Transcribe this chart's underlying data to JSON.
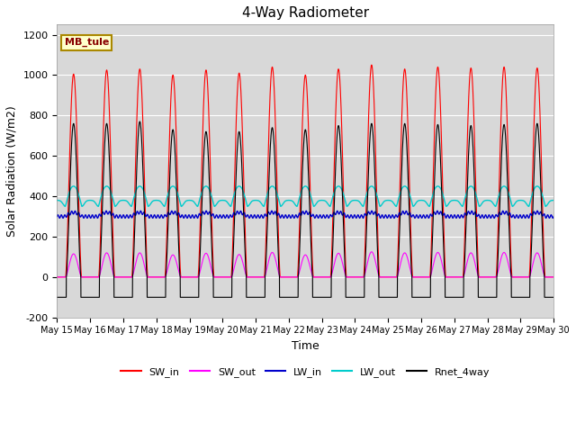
{
  "title": "4-Way Radiometer",
  "xlabel": "Time",
  "ylabel": "Solar Radiation (W/m2)",
  "station_label": "MB_tule",
  "ylim": [
    -200,
    1250
  ],
  "yticks": [
    -200,
    0,
    200,
    400,
    600,
    800,
    1000,
    1200
  ],
  "num_days": 15,
  "xtick_labels": [
    "May 15",
    "May 16",
    "May 17",
    "May 18",
    "May 19",
    "May 20",
    "May 21",
    "May 22",
    "May 23",
    "May 24",
    "May 25",
    "May 26",
    "May 27",
    "May 28",
    "May 29",
    "May 30"
  ],
  "SW_in_peaks": [
    1005,
    1025,
    1030,
    1000,
    1025,
    1010,
    1040,
    1000,
    1030,
    1050,
    1030,
    1040,
    1035,
    1040,
    1035
  ],
  "SW_out_peaks": [
    115,
    120,
    120,
    110,
    118,
    112,
    122,
    110,
    118,
    125,
    120,
    122,
    120,
    122,
    120
  ],
  "LW_in_base": 300,
  "LW_out_base": 380,
  "Rnet_peaks": [
    760,
    760,
    770,
    730,
    720,
    720,
    740,
    730,
    750,
    760,
    760,
    755,
    750,
    755,
    760
  ],
  "Rnet_night": -100,
  "colors": {
    "SW_in": "#ff0000",
    "SW_out": "#ff00ff",
    "LW_in": "#0000cc",
    "LW_out": "#00cccc",
    "Rnet_4way": "#000000"
  },
  "legend_labels": [
    "SW_in",
    "SW_out",
    "LW_in",
    "LW_out",
    "Rnet_4way"
  ],
  "fig_bg_color": "#ffffff",
  "plot_bg_color": "#d8d8d8",
  "grid_color": "#ffffff"
}
